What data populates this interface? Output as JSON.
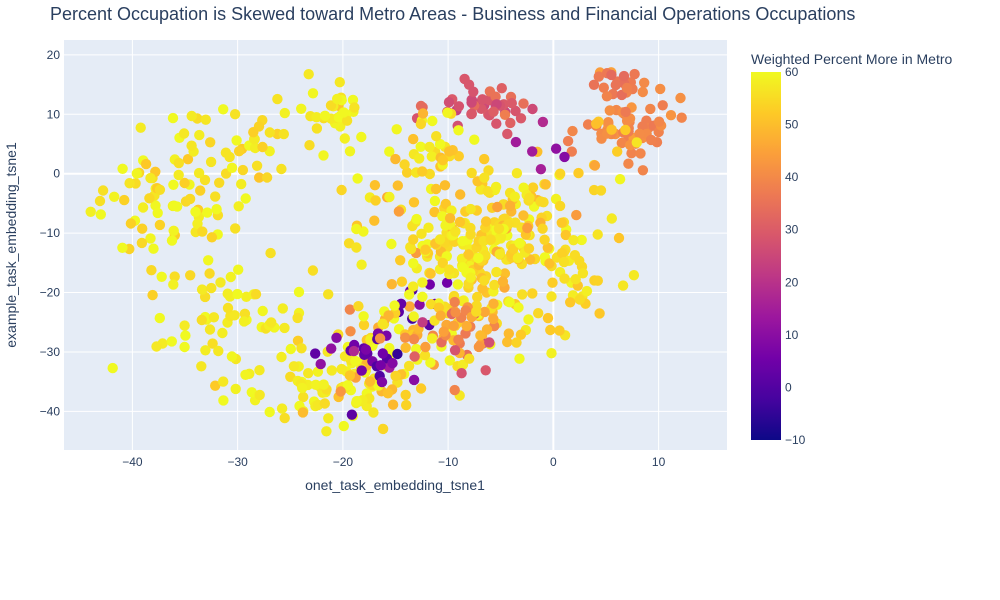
{
  "chart_data": {
    "type": "scatter",
    "title": "Percent Occupation is Skewed toward Metro Areas - Business and Financial Operations Occupations",
    "xlabel": "onet_task_embedding_tsne1",
    "ylabel": "example_task_embedding_tsne1",
    "xlim": [
      -46.5,
      16.5
    ],
    "ylim": [
      -46.5,
      22.5
    ],
    "x_ticks": [
      -40,
      -30,
      -20,
      -10,
      0,
      10
    ],
    "y_ticks": [
      -40,
      -30,
      -20,
      -10,
      0,
      10,
      20
    ],
    "grid": true,
    "colorbar": {
      "title": "Weighted Percent More in Metro",
      "range": [
        -10,
        60
      ],
      "ticks": [
        -10,
        0,
        10,
        20,
        30,
        40,
        50,
        60
      ]
    },
    "colors": {
      "plot_bg": "#e5ecf6",
      "grid": "#ffffff",
      "text": "#2a3f5f",
      "colorscale": [
        "#0d0887",
        "#46039f",
        "#7201a8",
        "#9c179e",
        "#bd3786",
        "#d8576b",
        "#ed7953",
        "#fb9f3a",
        "#fdca26",
        "#f0f921"
      ]
    },
    "clusters": [
      {
        "cx": -37,
        "cy": -6,
        "sx": 3.5,
        "sy": 5.5,
        "n": 70,
        "v": 57,
        "vs": 3
      },
      {
        "cx": -30,
        "cy": 5,
        "sx": 4,
        "sy": 4,
        "n": 45,
        "v": 57,
        "vs": 3
      },
      {
        "cx": -20.5,
        "cy": 10,
        "sx": 1.3,
        "sy": 3,
        "n": 30,
        "v": 58,
        "vs": 2
      },
      {
        "cx": -30,
        "cy": -25,
        "sx": 3.5,
        "sy": 5,
        "n": 60,
        "v": 58,
        "vs": 2
      },
      {
        "cx": -22,
        "cy": -36,
        "sx": 4,
        "sy": 3.5,
        "n": 70,
        "v": 58,
        "vs": 2
      },
      {
        "cx": -17,
        "cy": -30,
        "sx": 3,
        "sy": 4,
        "n": 60,
        "v": 55,
        "vs": 6
      },
      {
        "cx": -18,
        "cy": -30.5,
        "sx": 2,
        "sy": 2.5,
        "n": 28,
        "v": 5,
        "vs": 4
      },
      {
        "cx": -13,
        "cy": -21,
        "sx": 2,
        "sy": 2,
        "n": 12,
        "v": 4,
        "vs": 4
      },
      {
        "cx": -9,
        "cy": -12,
        "sx": 5,
        "sy": 7,
        "n": 200,
        "v": 55,
        "vs": 4
      },
      {
        "cx": -4,
        "cy": -10,
        "sx": 3,
        "sy": 6,
        "n": 90,
        "v": 54,
        "vs": 4
      },
      {
        "cx": -8,
        "cy": -27,
        "sx": 3,
        "sy": 3,
        "n": 70,
        "v": 45,
        "vs": 8
      },
      {
        "cx": -7,
        "cy": 11,
        "sx": 2.5,
        "sy": 1.8,
        "n": 45,
        "v": 30,
        "vs": 4
      },
      {
        "cx": -12,
        "cy": 5,
        "sx": 2,
        "sy": 3.5,
        "n": 30,
        "v": 55,
        "vs": 4
      },
      {
        "cx": 6,
        "cy": 15,
        "sx": 1.5,
        "sy": 1.8,
        "n": 20,
        "v": 37,
        "vs": 3
      },
      {
        "cx": 8,
        "cy": 7,
        "sx": 2.5,
        "sy": 2.5,
        "n": 55,
        "v": 39,
        "vs": 2
      },
      {
        "cx": 2.5,
        "cy": -19,
        "sx": 2,
        "sy": 6,
        "n": 30,
        "v": 55,
        "vs": 3
      },
      {
        "cx": 4,
        "cy": 5,
        "sx": 1.5,
        "sy": 4,
        "n": 12,
        "v": 52,
        "vs": 3
      },
      {
        "cx": -1,
        "cy": 2,
        "sx": 1.5,
        "sy": 1.5,
        "n": 5,
        "v": 12,
        "vs": 3
      }
    ]
  }
}
